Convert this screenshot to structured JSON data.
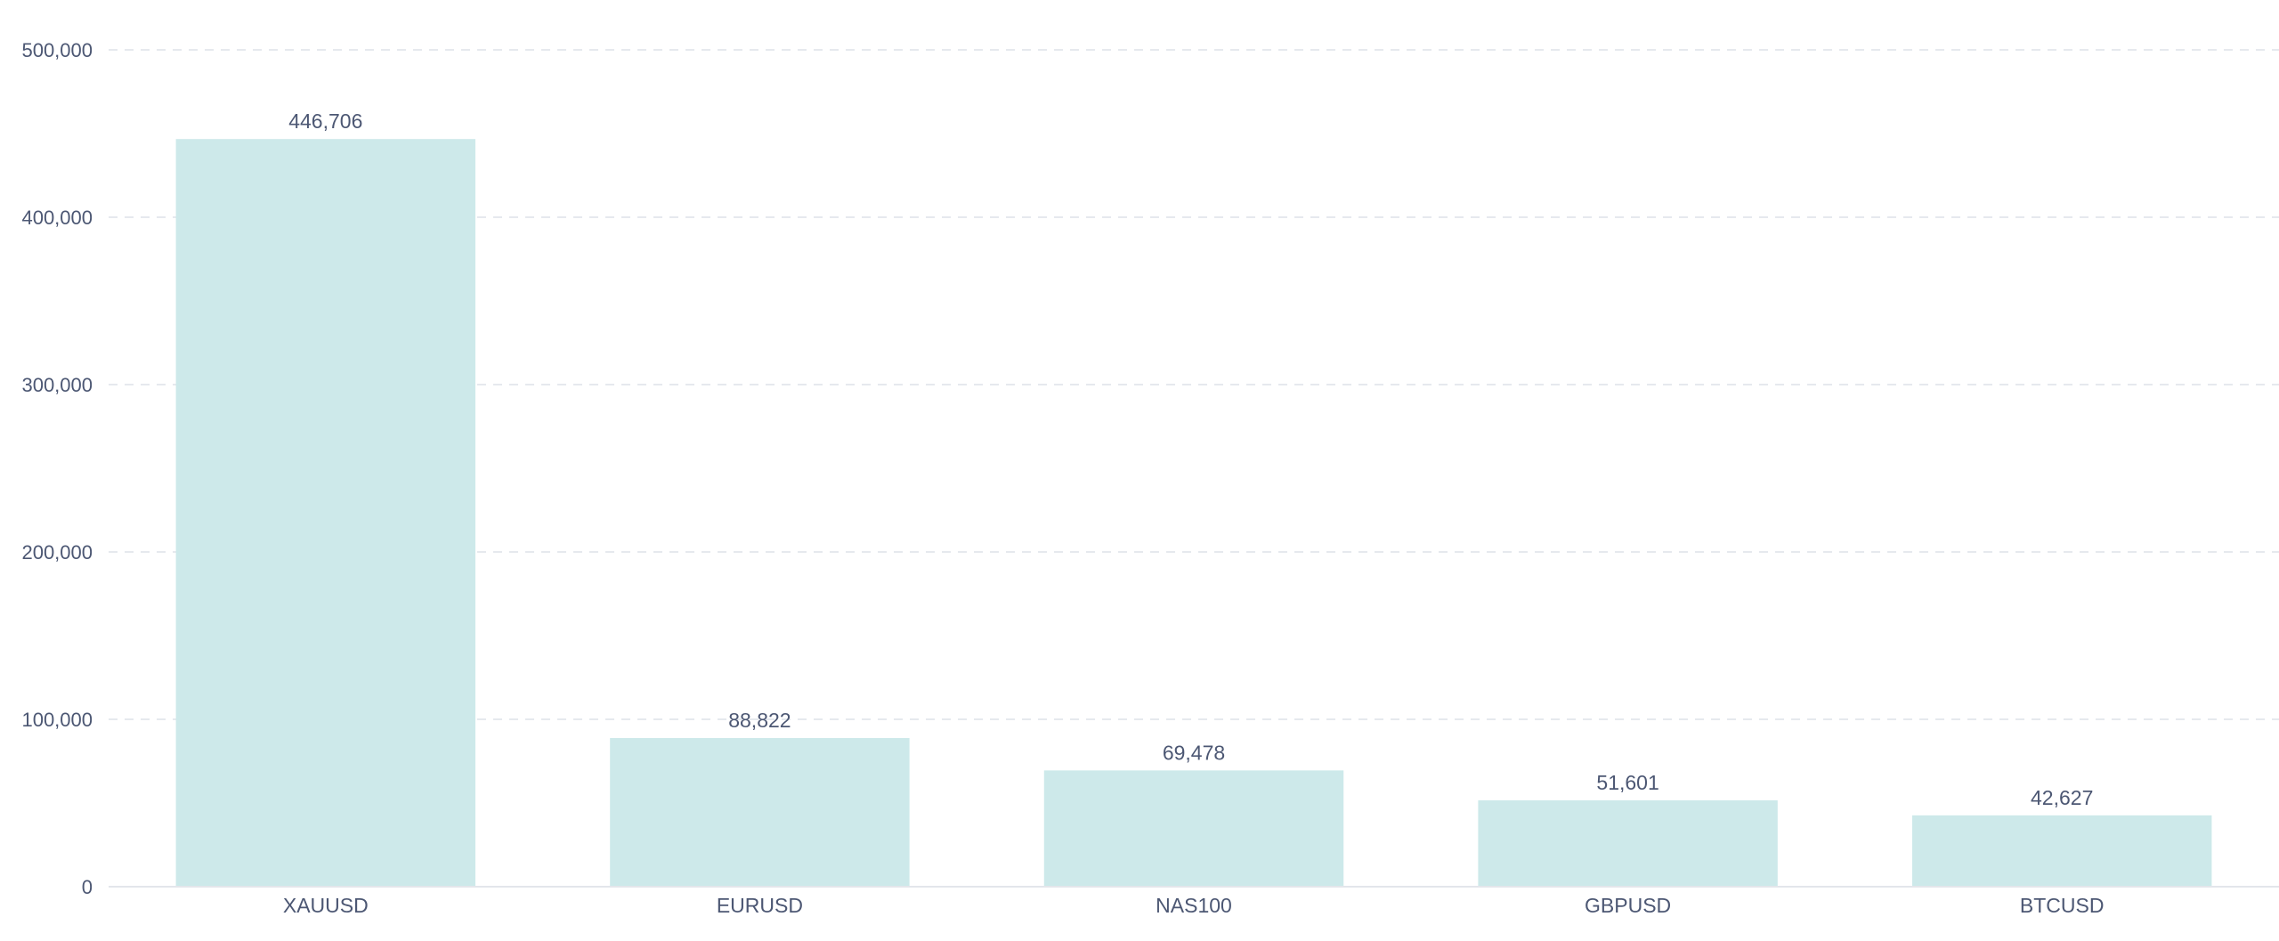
{
  "chart_data": {
    "type": "bar",
    "categories": [
      "XAUUSD",
      "EURUSD",
      "NAS100",
      "GBPUSD",
      "BTCUSD"
    ],
    "values": [
      446706,
      88822,
      69478,
      51601,
      42627
    ],
    "value_labels": [
      "446,706",
      "88,822",
      "69,478",
      "51,601",
      "42,627"
    ],
    "ylim": [
      0,
      500000
    ],
    "yticks": [
      0,
      100000,
      200000,
      300000,
      400000,
      500000
    ],
    "ytick_labels": [
      "0",
      "100,000",
      "200,000",
      "300,000",
      "400,000",
      "500,000"
    ],
    "title": "",
    "xlabel": "",
    "ylabel": "",
    "grid": true,
    "legend": "none",
    "bar_color": "#cde9ea",
    "text_color": "#4c5773"
  }
}
